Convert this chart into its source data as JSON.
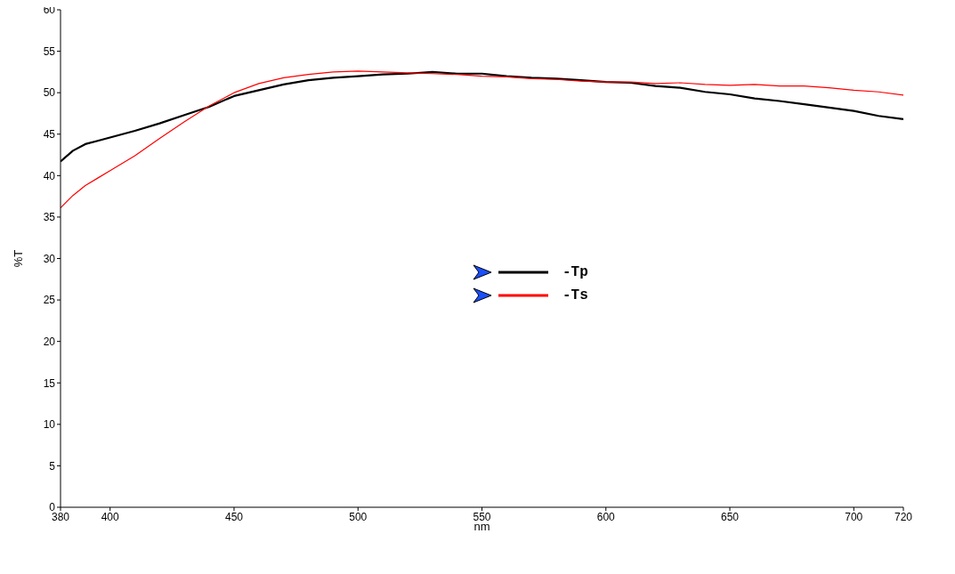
{
  "chart_data": {
    "type": "line",
    "xlabel": "nm",
    "ylabel": "%T",
    "x": [
      380,
      385,
      390,
      395,
      400,
      410,
      420,
      430,
      440,
      450,
      460,
      470,
      480,
      490,
      500,
      510,
      520,
      530,
      540,
      550,
      560,
      570,
      580,
      590,
      600,
      610,
      620,
      630,
      640,
      650,
      660,
      670,
      680,
      690,
      700,
      710,
      720
    ],
    "series": [
      {
        "name": "-Tp",
        "color": "#000000",
        "values": [
          41.7,
          43.0,
          43.8,
          44.2,
          44.6,
          45.4,
          46.3,
          47.3,
          48.3,
          49.6,
          50.3,
          51.0,
          51.5,
          51.8,
          52.0,
          52.2,
          52.3,
          52.5,
          52.3,
          52.3,
          52.0,
          51.8,
          51.7,
          51.5,
          51.3,
          51.2,
          50.8,
          50.6,
          50.1,
          49.8,
          49.3,
          49.0,
          48.6,
          48.2,
          47.8,
          47.2,
          46.8
        ]
      },
      {
        "name": "-Ts",
        "color": "#ff0000",
        "values": [
          36.1,
          37.6,
          38.8,
          39.7,
          40.6,
          42.4,
          44.5,
          46.5,
          48.4,
          50.0,
          51.1,
          51.8,
          52.2,
          52.5,
          52.6,
          52.5,
          52.4,
          52.3,
          52.2,
          52.0,
          51.9,
          51.7,
          51.6,
          51.4,
          51.3,
          51.3,
          51.1,
          51.2,
          51.0,
          50.9,
          51.0,
          50.8,
          50.8,
          50.6,
          50.3,
          50.1,
          49.7
        ]
      }
    ],
    "xlim": [
      380,
      720
    ],
    "xticks": [
      380,
      400,
      450,
      500,
      550,
      600,
      650,
      700,
      720
    ],
    "ylim": [
      0,
      60
    ],
    "yticks": [
      0,
      5,
      10,
      15,
      20,
      25,
      30,
      35,
      40,
      45,
      50,
      55,
      60
    ],
    "grid": false,
    "legend": "center",
    "marker": "none",
    "line_style": "solid"
  }
}
